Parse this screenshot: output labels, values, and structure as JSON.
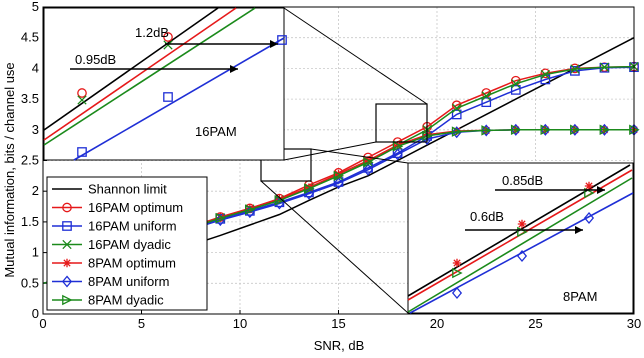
{
  "chart_data": {
    "type": "line",
    "xlabel": "SNR, dB",
    "ylabel": "Mutual information, bits / channel use",
    "xlim": [
      0,
      30
    ],
    "ylim": [
      0,
      5
    ],
    "xticks": [
      "0",
      "5",
      "10",
      "15",
      "20",
      "25",
      "30"
    ],
    "yticks": [
      "0",
      "0.5",
      "1",
      "1.5",
      "2",
      "2.5",
      "3",
      "3.5",
      "4",
      "4.5",
      "5"
    ],
    "grid": true,
    "legend_position": "lower-left",
    "series": [
      {
        "name": "Shannon limit",
        "color": "#000000",
        "marker": "none",
        "x": [
          0,
          1.5,
          3,
          4.5,
          6,
          7.5,
          9,
          10.5,
          12,
          13.5,
          15,
          16.5,
          18,
          19.5,
          21,
          22.5,
          24,
          25.5,
          27,
          28.5,
          30
        ],
        "y": [
          0.5,
          0.61,
          0.71,
          0.83,
          0.97,
          1.12,
          1.28,
          1.45,
          1.62,
          1.85,
          2.07,
          2.25,
          2.5,
          2.75,
          3.0,
          3.25,
          3.5,
          3.75,
          4.0,
          4.25,
          4.5
        ]
      },
      {
        "name": "16PAM optimum",
        "color": "#e6191a",
        "marker": "circle",
        "x": [
          0,
          1.5,
          3,
          4.5,
          6,
          7.5,
          9,
          10.5,
          12,
          13.5,
          15,
          16.5,
          18,
          19.5,
          21,
          22.5,
          24,
          25.5,
          27,
          28.5,
          30
        ],
        "y": [
          0.5,
          0.61,
          0.71,
          0.83,
          0.97,
          1.42,
          1.58,
          1.72,
          1.88,
          2.1,
          2.3,
          2.55,
          2.8,
          3.05,
          3.4,
          3.6,
          3.8,
          3.92,
          4.0,
          4.02,
          4.03
        ]
      },
      {
        "name": "16PAM uniform",
        "color": "#1f2fd6",
        "marker": "square",
        "x": [
          0,
          1.5,
          3,
          4.5,
          6,
          7.5,
          9,
          10.5,
          12,
          13.5,
          15,
          16.5,
          18,
          19.5,
          21,
          22.5,
          24,
          25.5,
          27,
          28.5,
          30
        ],
        "y": [
          0.5,
          0.61,
          0.71,
          0.83,
          0.97,
          1.4,
          1.55,
          1.68,
          1.82,
          1.98,
          2.15,
          2.38,
          2.62,
          2.9,
          3.25,
          3.45,
          3.65,
          3.82,
          3.96,
          4.01,
          4.02
        ]
      },
      {
        "name": "16PAM dyadic",
        "color": "#1b8a1b",
        "marker": "x",
        "x": [
          0,
          1.5,
          3,
          4.5,
          6,
          7.5,
          9,
          10.5,
          12,
          13.5,
          15,
          16.5,
          18,
          19.5,
          21,
          22.5,
          24,
          25.5,
          27,
          28.5,
          30
        ],
        "y": [
          0.5,
          0.61,
          0.71,
          0.83,
          0.97,
          1.41,
          1.57,
          1.71,
          1.86,
          2.05,
          2.25,
          2.48,
          2.75,
          3.0,
          3.35,
          3.55,
          3.75,
          3.9,
          3.99,
          4.02,
          4.03
        ]
      },
      {
        "name": "8PAM optimum",
        "color": "#e6191a",
        "marker": "star",
        "x": [
          7.5,
          9,
          10.5,
          12,
          13.5,
          15,
          16.5,
          18,
          19.5,
          21,
          22.5,
          24,
          25.5,
          27,
          28.5,
          30
        ],
        "y": [
          1.41,
          1.57,
          1.72,
          1.87,
          2.06,
          2.28,
          2.5,
          2.75,
          2.92,
          2.98,
          2.99,
          3.0,
          3.0,
          3.0,
          3.0,
          3.0
        ]
      },
      {
        "name": "8PAM uniform",
        "color": "#1f2fd6",
        "marker": "diamond",
        "x": [
          7.5,
          9,
          10.5,
          12,
          13.5,
          15,
          16.5,
          18,
          19.5,
          21,
          22.5,
          24,
          25.5,
          27,
          28.5,
          30
        ],
        "y": [
          1.38,
          1.53,
          1.66,
          1.8,
          1.96,
          2.13,
          2.35,
          2.6,
          2.85,
          2.96,
          2.99,
          3.0,
          3.0,
          3.0,
          3.0,
          3.0
        ]
      },
      {
        "name": "8PAM dyadic",
        "color": "#1b8a1b",
        "marker": "triangle-right",
        "x": [
          7.5,
          9,
          10.5,
          12,
          13.5,
          15,
          16.5,
          18,
          19.5,
          21,
          22.5,
          24,
          25.5,
          27,
          28.5,
          30
        ],
        "y": [
          1.4,
          1.56,
          1.7,
          1.85,
          2.04,
          2.25,
          2.47,
          2.73,
          2.9,
          2.97,
          2.99,
          3.0,
          3.0,
          3.0,
          3.0,
          3.0
        ]
      }
    ],
    "insets": [
      {
        "label": "16PAM",
        "gaps": [
          "1.2dB",
          "0.95dB"
        ]
      },
      {
        "label": "8PAM",
        "gaps": [
          "0.85dB",
          "0.6dB"
        ]
      }
    ]
  }
}
